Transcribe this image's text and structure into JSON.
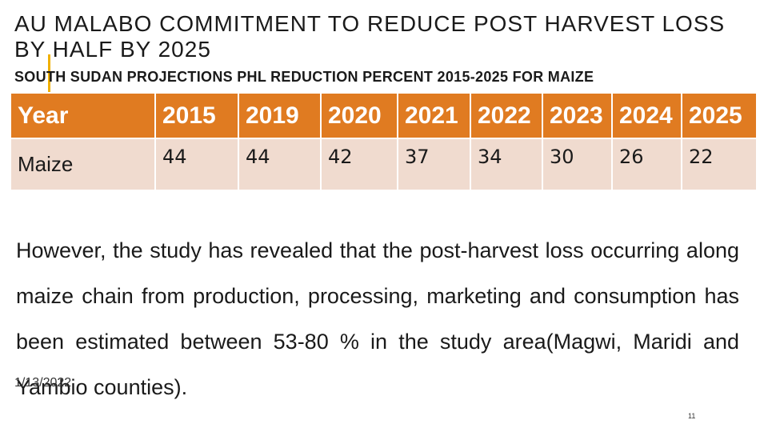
{
  "slide": {
    "title": "AU MALABO COMMITMENT TO REDUCE POST HARVEST LOSS BY HALF BY 2025",
    "subtitle": "SOUTH SUDAN PROJECTIONS PHL REDUCTION PERCENT 2015-2025 FOR MAIZE",
    "colors": {
      "header_fill": "#e07b21",
      "row_fill": "#f0dbcf",
      "accent": "#f0b000"
    }
  },
  "table": {
    "headers": [
      "Year",
      "2015",
      "2019",
      "2020",
      "2021",
      "2022",
      "2023",
      "2024",
      "2025"
    ],
    "rows": [
      [
        "Maize",
        "44",
        "44",
        "42",
        "37",
        "34",
        "30",
        "26",
        "22"
      ]
    ]
  },
  "body_text": "However, the study has revealed that the post-harvest loss occurring along maize chain from production, processing, marketing and consumption has been estimated between 53-80 % in the study area(Magwi, Maridi and Yambio counties).",
  "footer": {
    "date": "1/13/2022",
    "page_number": "11"
  }
}
